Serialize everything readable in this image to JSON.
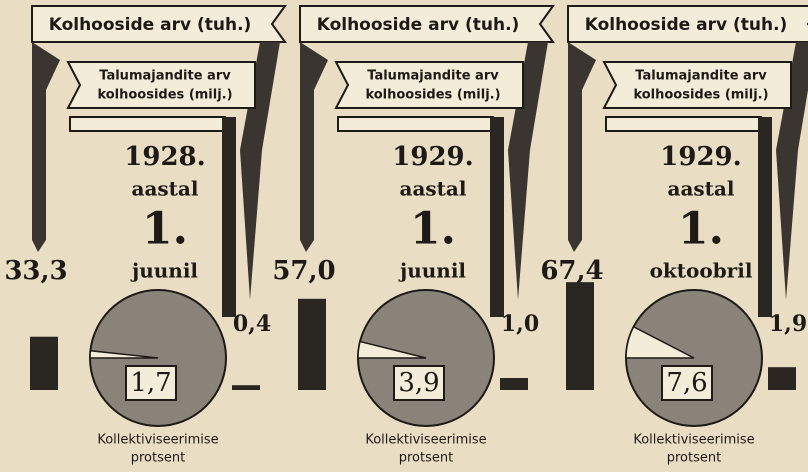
{
  "chart_data": [
    {
      "type": "pictogram",
      "date": [
        "1928.",
        "aastal",
        "1.",
        "juunil"
      ],
      "farms": {
        "label": "Kolhooside arv (tuh.)",
        "value": 33.3,
        "value_label": "33,3"
      },
      "households": {
        "label": [
          "Talumajandite arv",
          "kolhoosides (milj.)"
        ],
        "value": 0.4,
        "value_label": "0,4"
      },
      "share": {
        "label": [
          "Kollektiviseerimise",
          "protsent"
        ],
        "value": 1.7,
        "value_label": "1,7"
      }
    },
    {
      "type": "pictogram",
      "date": [
        "1929.",
        "aastal",
        "1.",
        "juunil"
      ],
      "farms": {
        "label": "Kolhooside arv (tuh.)",
        "value": 57.0,
        "value_label": "57,0"
      },
      "households": {
        "label": [
          "Talumajandite arv",
          "kolhoosides (milj.)"
        ],
        "value": 1.0,
        "value_label": "1,0"
      },
      "share": {
        "label": [
          "Kollektiviseerimise",
          "protsent"
        ],
        "value": 3.9,
        "value_label": "3,9"
      }
    },
    {
      "type": "pictogram",
      "date": [
        "1929.",
        "aastal",
        "1.",
        "oktoobril"
      ],
      "farms": {
        "label": "Kolhooside arv (tuh.)",
        "value": 67.4,
        "value_label": "67,4"
      },
      "households": {
        "label": [
          "Talumajandite arv",
          "kolhoosides (milj.)"
        ],
        "value": 1.9,
        "value_label": "1,9"
      },
      "share": {
        "label": [
          "Kollektiviseerimise",
          "protsent"
        ],
        "value": 7.6,
        "value_label": "7,6"
      }
    }
  ]
}
